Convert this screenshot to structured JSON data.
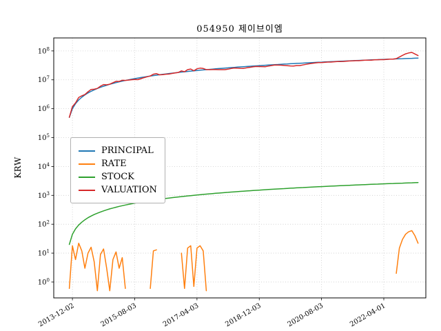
{
  "chart_data": {
    "type": "line",
    "title": "054950 제이브이엠",
    "xlabel": "",
    "ylabel": "KRW",
    "y_scale": "log",
    "y_log_range": [
      -0.55,
      8.45
    ],
    "y_tick_exponents": [
      0,
      1,
      2,
      3,
      4,
      5,
      6,
      7,
      8
    ],
    "grid": true,
    "legend_position": "center left",
    "x_unit": "month index (monthly samples)",
    "x_range": [
      -5,
      114.5
    ],
    "x_ticks": [
      {
        "pos": 1,
        "label": "2013-12-02"
      },
      {
        "pos": 21,
        "label": "2015-08-03"
      },
      {
        "pos": 41,
        "label": "2017-04-03"
      },
      {
        "pos": 61,
        "label": "2018-12-03"
      },
      {
        "pos": 81,
        "label": "2020-08-03"
      },
      {
        "pos": 101,
        "label": "2022-04-01"
      }
    ],
    "series": [
      {
        "name": "PRINCIPAL",
        "color": "#1f77b4",
        "unit": "KRW",
        "value_scale": 1000000,
        "values": [
          0.5,
          1,
          1.5,
          2,
          2.5,
          3,
          3.5,
          4,
          4.5,
          5,
          5.5,
          6,
          6.5,
          7,
          7.5,
          8,
          8.5,
          9,
          9.5,
          10,
          10.5,
          11,
          11.5,
          12,
          12.5,
          13,
          13.5,
          14,
          14.5,
          15,
          15.5,
          16,
          16.5,
          17,
          17.5,
          18,
          18.5,
          19,
          19.5,
          20,
          20.5,
          21,
          21.5,
          22,
          22.5,
          23,
          23.5,
          24,
          24.5,
          25,
          25.5,
          26,
          26.5,
          27,
          27.5,
          28,
          28.5,
          29,
          29.5,
          30,
          30.5,
          31,
          31.5,
          32,
          32.5,
          33,
          33.5,
          34,
          34.5,
          35,
          35.5,
          36,
          36.5,
          37,
          37.5,
          38,
          38.5,
          39,
          39.5,
          40,
          40.5,
          41,
          41.5,
          42,
          42.5,
          43,
          43.5,
          44,
          44.5,
          45,
          45.5,
          46,
          46.5,
          47,
          47.5,
          48,
          48.5,
          49,
          49.5,
          50,
          50.5,
          51,
          51.5,
          52,
          52.5,
          53,
          53.5,
          54,
          54.5,
          55,
          55.5,
          56,
          56.5
        ]
      },
      {
        "name": "RATE",
        "color": "#ff7f0e",
        "unit": "percent",
        "value_scale": 1,
        "values": [
          0.6,
          18,
          6,
          22,
          12,
          3,
          10,
          16,
          5,
          0.5,
          9,
          14,
          3,
          0.5,
          6,
          11,
          3,
          7,
          0.6,
          null,
          null,
          null,
          null,
          null,
          null,
          null,
          0.6,
          12,
          13,
          null,
          null,
          null,
          null,
          null,
          null,
          null,
          10,
          0.6,
          15,
          18,
          0.7,
          15,
          18,
          12,
          0.5,
          null,
          null,
          null,
          null,
          null,
          null,
          null,
          null,
          null,
          null,
          null,
          null,
          null,
          null,
          null,
          null,
          null,
          null,
          null,
          null,
          null,
          null,
          null,
          null,
          null,
          null,
          null,
          null,
          null,
          null,
          null,
          null,
          null,
          null,
          null,
          null,
          null,
          null,
          null,
          null,
          null,
          null,
          null,
          null,
          null,
          null,
          null,
          null,
          null,
          null,
          null,
          null,
          null,
          null,
          null,
          null,
          null,
          null,
          null,
          null,
          2,
          15,
          30,
          45,
          55,
          60,
          40,
          22
        ]
      },
      {
        "name": "STOCK",
        "color": "#2ca02c",
        "unit": "shares",
        "value_scale": 1,
        "values": [
          20,
          45,
          69,
          94,
          118,
          143,
          168,
          192,
          217,
          241,
          266,
          291,
          315,
          340,
          364,
          389,
          414,
          438,
          463,
          487,
          512,
          537,
          561,
          586,
          610,
          635,
          660,
          684,
          709,
          733,
          758,
          783,
          807,
          832,
          856,
          881,
          906,
          930,
          955,
          979,
          1004,
          1029,
          1053,
          1078,
          1102,
          1127,
          1152,
          1176,
          1201,
          1225,
          1250,
          1275,
          1299,
          1324,
          1348,
          1373,
          1398,
          1422,
          1447,
          1471,
          1496,
          1521,
          1545,
          1570,
          1594,
          1619,
          1644,
          1668,
          1693,
          1717,
          1742,
          1767,
          1791,
          1816,
          1840,
          1865,
          1890,
          1914,
          1939,
          1963,
          1988,
          2013,
          2037,
          2062,
          2086,
          2111,
          2136,
          2160,
          2185,
          2209,
          2234,
          2259,
          2283,
          2308,
          2332,
          2357,
          2382,
          2406,
          2431,
          2455,
          2480,
          2505,
          2529,
          2554,
          2578,
          2603,
          2628,
          2652,
          2677,
          2701,
          2726,
          2751,
          2775
        ]
      },
      {
        "name": "VALUATION",
        "color": "#d62728",
        "unit": "KRW",
        "value_scale": 1000000,
        "values": [
          0.503,
          1.18,
          1.59,
          2.44,
          2.8,
          3.09,
          3.85,
          4.64,
          4.73,
          5.03,
          6.0,
          6.84,
          6.7,
          7.04,
          7.95,
          8.88,
          8.76,
          9.63,
          9.56,
          9.8,
          10.08,
          10.23,
          10.12,
          10.92,
          11.88,
          12.74,
          13.58,
          15.68,
          16.39,
          14.85,
          15.04,
          15.68,
          15.84,
          16.66,
          17.33,
          17.96,
          20.35,
          19.11,
          22.43,
          23.6,
          20.64,
          24.15,
          25.37,
          24.64,
          22.61,
          22.54,
          22.56,
          22.56,
          22.54,
          22.5,
          22.44,
          23.4,
          24.65,
          25.65,
          25.3,
          24.92,
          24.8,
          26.1,
          27.14,
          28.2,
          28.98,
          28.83,
          28.67,
          28.48,
          29.9,
          31.35,
          32.5,
          32.3,
          32.09,
          31.5,
          30.89,
          30.24,
          29.93,
          31.08,
          31.13,
          32.68,
          34.27,
          35.88,
          37.13,
          38.4,
          39.29,
          39.36,
          40.26,
          41.16,
          41.23,
          42.14,
          43.07,
          43.12,
          43.17,
          44.1,
          45.05,
          45.31,
          46.04,
          46.06,
          47.03,
          47.76,
          48.02,
          48.02,
          49.01,
          49.75,
          50.0,
          49.98,
          50.99,
          51.74,
          51.98,
          54.06,
          61.53,
          70.2,
          79.03,
          85.25,
          88.8,
          78.4,
          68.93
        ]
      }
    ]
  }
}
